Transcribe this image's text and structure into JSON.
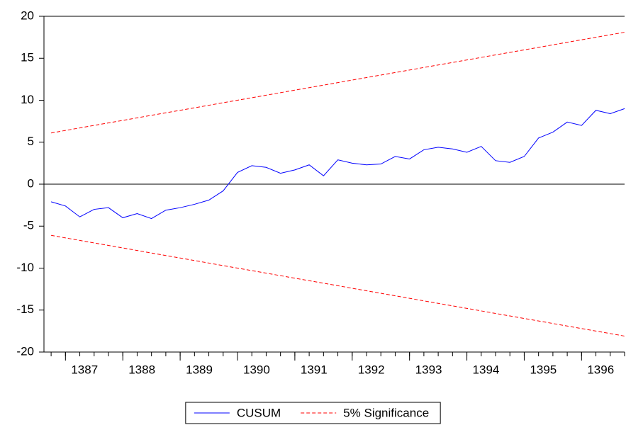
{
  "chart_data": {
    "type": "line",
    "x": [
      1386.75,
      1387,
      1387.25,
      1387.5,
      1387.75,
      1388,
      1388.25,
      1388.5,
      1388.75,
      1389,
      1389.25,
      1389.5,
      1389.75,
      1390,
      1390.25,
      1390.5,
      1390.75,
      1391,
      1391.25,
      1391.5,
      1391.75,
      1392,
      1392.25,
      1392.5,
      1392.75,
      1393,
      1393.25,
      1393.5,
      1393.75,
      1394,
      1394.25,
      1394.5,
      1394.75,
      1395,
      1395.25,
      1395.5,
      1395.75,
      1396,
      1396.25,
      1396.5,
      1396.75
    ],
    "series": [
      {
        "name": "CUSUM",
        "color": "#0000ff",
        "dash": false,
        "values": [
          -2.1,
          -2.6,
          -3.9,
          -3.0,
          -2.8,
          -4.0,
          -3.5,
          -4.1,
          -3.1,
          -2.8,
          -2.4,
          -1.9,
          -0.8,
          1.4,
          2.2,
          2.0,
          1.3,
          1.7,
          2.3,
          1.0,
          2.9,
          2.5,
          2.3,
          2.4,
          3.3,
          3.0,
          4.1,
          4.4,
          4.2,
          3.8,
          4.5,
          2.8,
          2.6,
          3.3,
          5.5,
          6.2,
          7.4,
          7.0,
          8.8,
          8.4,
          9.0
        ]
      },
      {
        "name": "5% Significance",
        "color": "#ff0000",
        "dash": true,
        "values": [
          6.1,
          6.4,
          6.7,
          7.0,
          7.3,
          7.6,
          7.9,
          8.2,
          8.5,
          8.8,
          9.1,
          9.4,
          9.7,
          10.0,
          10.3,
          10.6,
          10.9,
          11.2,
          11.5,
          11.8,
          12.1,
          12.4,
          12.7,
          13.0,
          13.3,
          13.6,
          13.9,
          14.2,
          14.5,
          14.8,
          15.1,
          15.4,
          15.7,
          16.0,
          16.3,
          16.6,
          16.9,
          17.2,
          17.5,
          17.8,
          18.1
        ]
      },
      {
        "color": "#ff0000",
        "dash": true,
        "values": [
          -6.1,
          -6.4,
          -6.7,
          -7.0,
          -7.3,
          -7.6,
          -7.9,
          -8.2,
          -8.5,
          -8.8,
          -9.1,
          -9.4,
          -9.7,
          -10.0,
          -10.3,
          -10.6,
          -10.9,
          -11.2,
          -11.5,
          -11.8,
          -12.1,
          -12.4,
          -12.7,
          -13.0,
          -13.3,
          -13.6,
          -13.9,
          -14.2,
          -14.5,
          -14.8,
          -15.1,
          -15.4,
          -15.7,
          -16.0,
          -16.3,
          -16.6,
          -16.9,
          -17.2,
          -17.5,
          -17.8,
          -18.1
        ]
      }
    ],
    "xlim": [
      1386.625,
      1396.75
    ],
    "xticks": [
      1387,
      1388,
      1389,
      1390,
      1391,
      1392,
      1393,
      1394,
      1395,
      1396
    ],
    "ylim": [
      -20,
      20
    ],
    "yticks": [
      20,
      15,
      10,
      5,
      0,
      -5,
      -10,
      -15,
      -20
    ],
    "grid": false,
    "legend": "bottom"
  }
}
